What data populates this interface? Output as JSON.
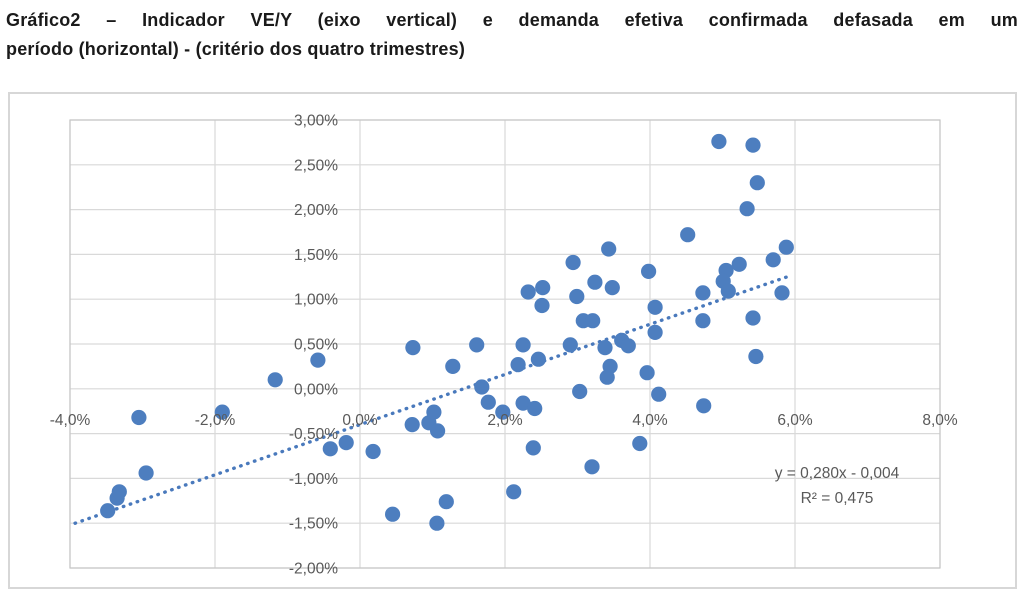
{
  "caption": {
    "full": "Gráfico2 – Indicador VE/Y (eixo vertical) e demanda efetiva confirmada defasada em um período (horizontal) - (critério dos quatro trimestres)",
    "line1": "Gráfico2 – Indicador VE/Y (eixo vertical) e demanda efetiva confirmada defasada em um",
    "line2": "período (horizontal) - (critério dos quatro trimestres)"
  },
  "chart_data": {
    "type": "scatter",
    "title": "",
    "xlabel": "",
    "ylabel": "",
    "xlim": [
      -4,
      8
    ],
    "ylim": [
      -2,
      3
    ],
    "x_tick_step": 2,
    "y_tick_step": 0.5,
    "x_tick_labels": [
      "-4,0%",
      "-2,0%",
      "0,0%",
      "2,0%",
      "4,0%",
      "6,0%",
      "8,0%"
    ],
    "y_tick_labels": [
      "3,00%",
      "2,50%",
      "2,00%",
      "1,50%",
      "1,00%",
      "0,50%",
      "0,00%",
      "-0,50%",
      "-1,00%",
      "-1,50%",
      "-2,00%"
    ],
    "grid": true,
    "legend": false,
    "units": "percent",
    "colors": {
      "marker": "#4D7EBF",
      "trendline": "#4979BC",
      "gridline": "#D9D9D9",
      "plot_border": "#C6C6C6",
      "outer_border": "#D7D7D7",
      "tick_text": "#595959",
      "equation_text": "#595959"
    },
    "trendline": {
      "style": "dotted",
      "slope": 0.28,
      "intercept_pct": -0.4,
      "x_start_pct": -3.93,
      "x_end_pct": 5.93,
      "equation_label": "y = 0,280x - 0,004",
      "r_squared_label": "R² = 0,475"
    },
    "points_pct": [
      [
        -3.48,
        -1.36
      ],
      [
        -3.35,
        -1.22
      ],
      [
        -3.32,
        -1.15
      ],
      [
        -2.95,
        -0.94
      ],
      [
        -3.05,
        -0.32
      ],
      [
        -1.9,
        -0.26
      ],
      [
        -1.17,
        0.1
      ],
      [
        -0.58,
        0.32
      ],
      [
        -0.41,
        -0.67
      ],
      [
        -0.19,
        -0.6
      ],
      [
        0.18,
        -0.7
      ],
      [
        0.45,
        -1.4
      ],
      [
        1.06,
        -1.5
      ],
      [
        1.19,
        -1.26
      ],
      [
        2.12,
        -1.15
      ],
      [
        2.39,
        -0.66
      ],
      [
        3.2,
        -0.87
      ],
      [
        3.86,
        -0.61
      ],
      [
        0.72,
        -0.4
      ],
      [
        0.95,
        -0.38
      ],
      [
        1.02,
        -0.26
      ],
      [
        1.07,
        -0.47
      ],
      [
        0.73,
        0.46
      ],
      [
        1.28,
        0.25
      ],
      [
        1.61,
        0.49
      ],
      [
        1.68,
        0.02
      ],
      [
        1.77,
        -0.15
      ],
      [
        1.97,
        -0.26
      ],
      [
        2.25,
        -0.16
      ],
      [
        2.41,
        -0.22
      ],
      [
        2.18,
        0.27
      ],
      [
        2.25,
        0.49
      ],
      [
        2.46,
        0.33
      ],
      [
        2.9,
        0.49
      ],
      [
        3.03,
        -0.03
      ],
      [
        3.38,
        0.46
      ],
      [
        3.61,
        0.54
      ],
      [
        3.7,
        0.48
      ],
      [
        3.45,
        0.25
      ],
      [
        3.41,
        0.13
      ],
      [
        2.32,
        1.08
      ],
      [
        2.52,
        1.13
      ],
      [
        2.51,
        0.93
      ],
      [
        2.94,
        1.41
      ],
      [
        2.99,
        1.03
      ],
      [
        3.08,
        0.76
      ],
      [
        3.21,
        0.76
      ],
      [
        3.24,
        1.19
      ],
      [
        3.43,
        1.56
      ],
      [
        3.48,
        1.13
      ],
      [
        3.98,
        1.31
      ],
      [
        4.07,
        0.91
      ],
      [
        4.07,
        0.63
      ],
      [
        3.96,
        0.18
      ],
      [
        4.12,
        -0.06
      ],
      [
        4.74,
        -0.19
      ],
      [
        4.52,
        1.72
      ],
      [
        4.95,
        2.76
      ],
      [
        5.42,
        2.72
      ],
      [
        5.48,
        2.3
      ],
      [
        5.34,
        2.01
      ],
      [
        5.88,
        1.58
      ],
      [
        5.7,
        1.44
      ],
      [
        5.23,
        1.39
      ],
      [
        5.05,
        1.32
      ],
      [
        5.01,
        1.2
      ],
      [
        5.08,
        1.09
      ],
      [
        4.73,
        1.07
      ],
      [
        5.82,
        1.07
      ],
      [
        5.42,
        0.79
      ],
      [
        4.73,
        0.76
      ],
      [
        5.46,
        0.36
      ]
    ]
  }
}
